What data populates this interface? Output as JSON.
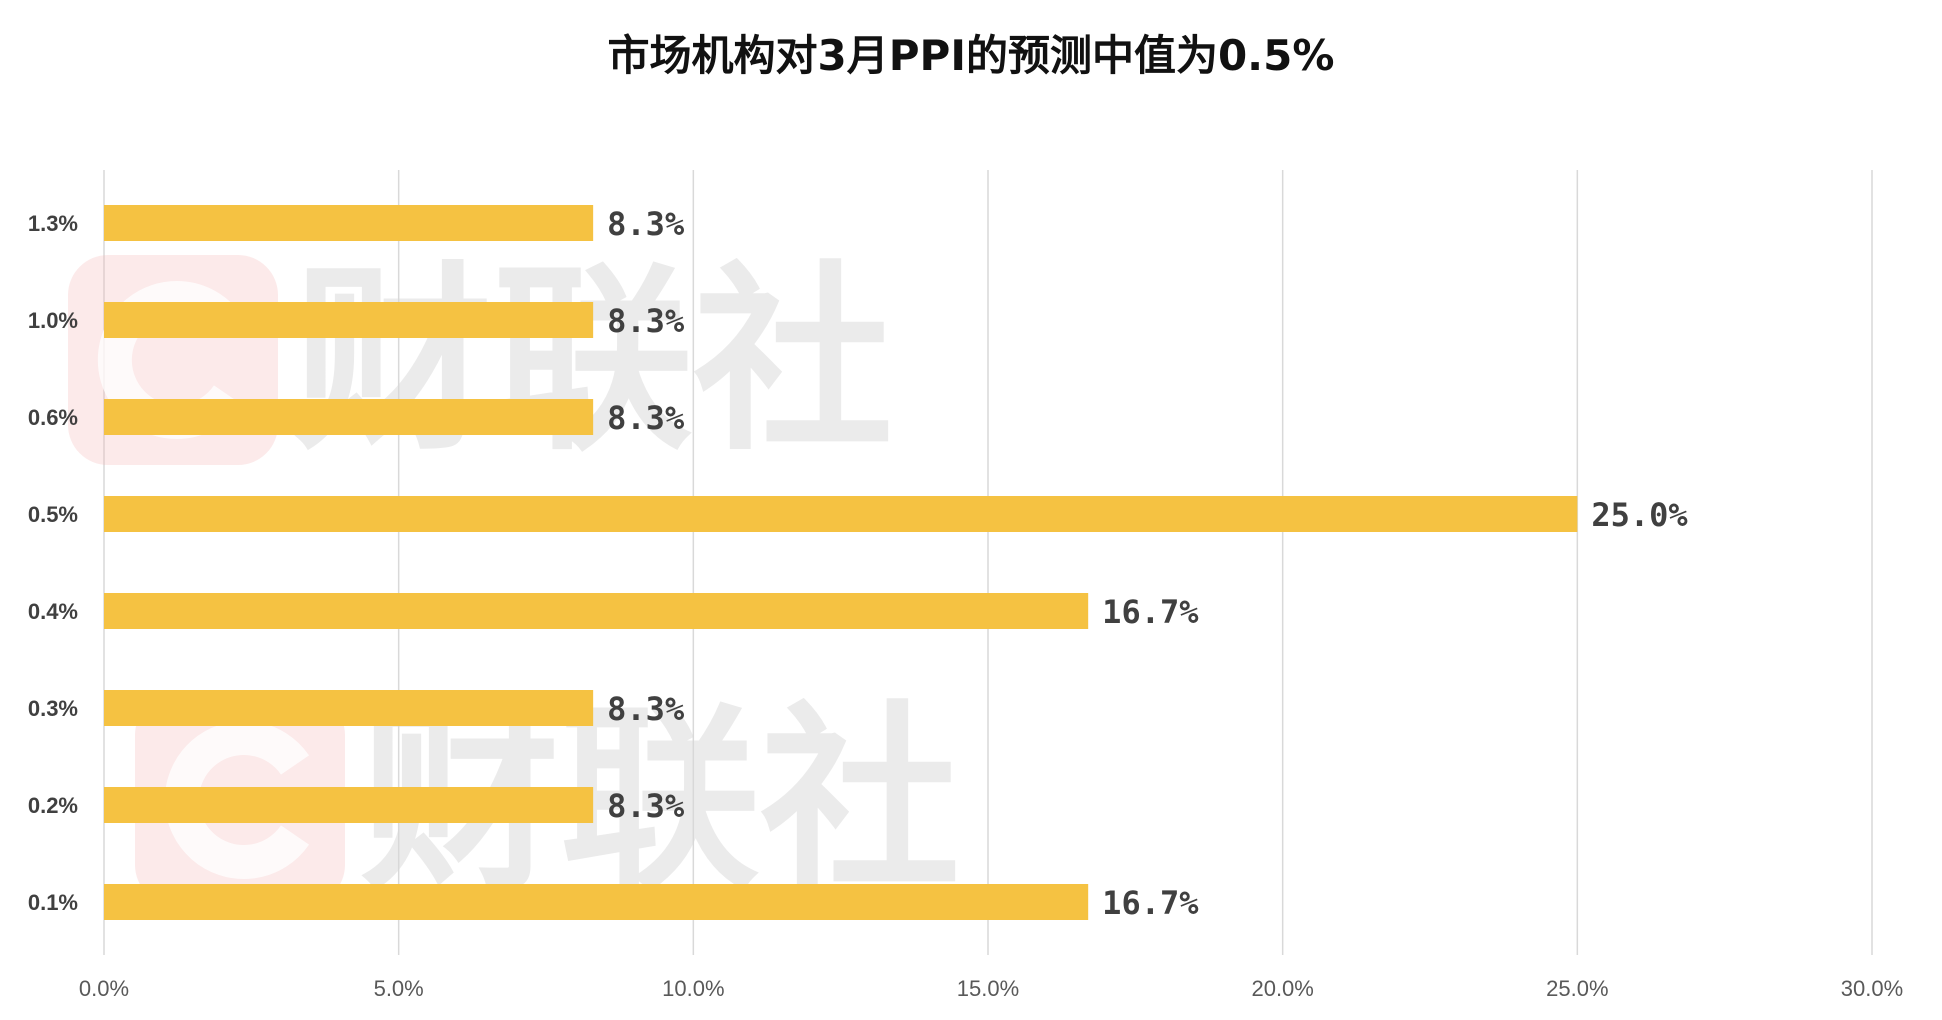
{
  "chart_data": {
    "type": "bar",
    "orientation": "horizontal",
    "title": "市场机构对3月PPI的预测中值为0.5%",
    "categories": [
      "1.3%",
      "1.0%",
      "0.6%",
      "0.5%",
      "0.4%",
      "0.3%",
      "0.2%",
      "0.1%"
    ],
    "values": [
      8.3,
      8.3,
      8.3,
      25.0,
      16.7,
      8.3,
      8.3,
      16.7
    ],
    "data_labels": [
      "8.3%",
      "8.3%",
      "8.3%",
      "25.0%",
      "16.7%",
      "8.3%",
      "8.3%",
      "16.7%"
    ],
    "xlim": [
      0,
      30
    ],
    "x_ticks": [
      "0.0%",
      "5.0%",
      "10.0%",
      "15.0%",
      "20.0%",
      "25.0%",
      "30.0%"
    ],
    "x_tick_values": [
      0,
      5,
      10,
      15,
      20,
      25,
      30
    ],
    "grid": "vertical",
    "legend": "none",
    "bar_color": "#f5c242"
  },
  "watermark": {
    "text": "财联社",
    "color": "#d8d8d8",
    "logo_color": "#f3b5b5"
  }
}
